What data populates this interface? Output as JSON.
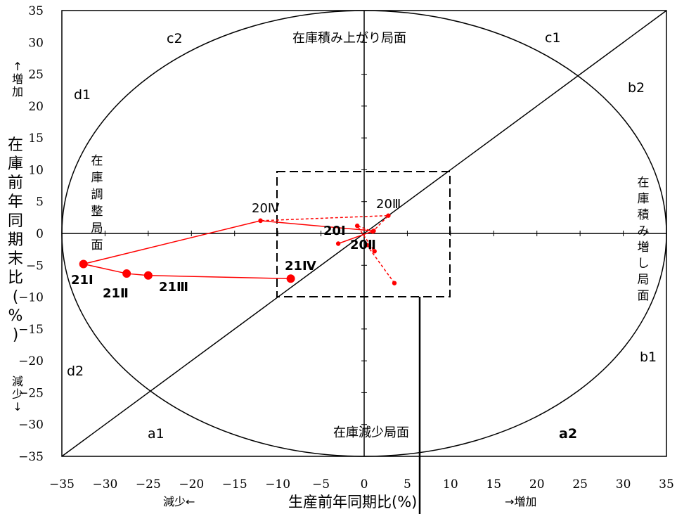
{
  "chart_data": {
    "type": "scatter",
    "xlabel": "生産前年同期比(%)",
    "ylabel": "在庫前年同期末比(%)",
    "xlim": [
      -35,
      35
    ],
    "ylim": [
      -35,
      35
    ],
    "x_ticks": [
      "−35",
      "−30",
      "−25",
      "−20",
      "−15",
      "−10",
      "−5",
      "0",
      "5",
      "10",
      "15",
      "20",
      "25",
      "30",
      "35"
    ],
    "y_ticks": [
      "35",
      "30",
      "25",
      "20",
      "15",
      "10",
      "5",
      "0",
      "−5",
      "−10",
      "−15",
      "−20",
      "−25",
      "−30",
      "−35"
    ],
    "x_dir_left": "減少←",
    "x_dir_right": "→増加",
    "y_dir_up": "↑増加",
    "y_dir_down": "減少↓",
    "regions": {
      "top": "在庫積み上がり局面",
      "bottom": "在庫減少局面",
      "left": "在庫調整局面",
      "right": "在庫積み増し局面"
    },
    "zones": [
      "c2",
      "c1",
      "d1",
      "b2",
      "d2",
      "b1",
      "a1",
      "a2"
    ],
    "series": [
      {
        "style": "dashed",
        "color": "#ff0000",
        "points": [
          {
            "x": 3.5,
            "y": -7.8
          },
          {
            "x": 0.3,
            "y": -1.8
          },
          {
            "x": 1.2,
            "y": -2.8
          },
          {
            "x": -0.8,
            "y": 1.2
          },
          {
            "x": 1.0,
            "y": 0.3
          },
          {
            "x": 2.8,
            "y": 2.8
          },
          {
            "x": -12.0,
            "y": 2.0
          }
        ]
      },
      {
        "style": "solid",
        "color": "#ff0000",
        "points": [
          {
            "x": -3.0,
            "y": -1.6
          },
          {
            "x": 1.1,
            "y": 0.4
          },
          {
            "x": -12.0,
            "y": 2.0
          },
          {
            "x": -32.5,
            "y": -4.8
          },
          {
            "x": -27.5,
            "y": -6.3
          },
          {
            "x": -25.0,
            "y": -6.6
          },
          {
            "x": -8.5,
            "y": -7.1
          }
        ]
      }
    ],
    "point_labels": [
      "20Ⅰ",
      "20Ⅱ",
      "20Ⅲ",
      "20Ⅳ",
      "21Ⅰ",
      "21Ⅱ",
      "21Ⅲ",
      "21Ⅳ"
    ]
  }
}
